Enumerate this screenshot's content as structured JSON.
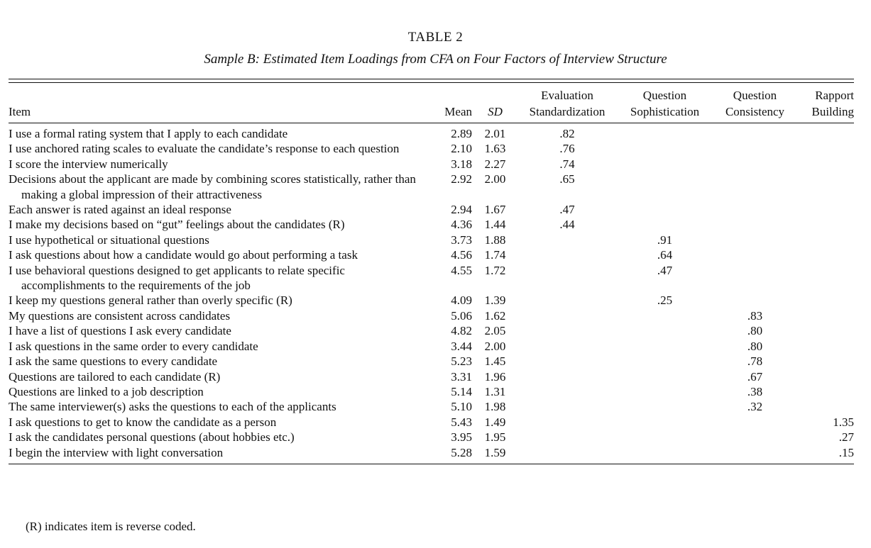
{
  "header": {
    "title": "TABLE 2",
    "subtitle": "Sample B: Estimated Item Loadings from CFA on Four Factors of Interview Structure"
  },
  "table": {
    "columns": {
      "item": "Item",
      "mean": "Mean",
      "sd": "SD"
    },
    "factors": [
      {
        "name": "Evaluation Standardization",
        "rows": [
          {
            "item": "I use a formal rating system that I apply to each candidate",
            "mean": "2.89",
            "sd": "2.01",
            "loading": ".82"
          },
          {
            "item": "I use anchored rating scales to evaluate the candidate’s response to each question",
            "mean": "2.10",
            "sd": "1.63",
            "loading": ".76"
          },
          {
            "item": "I score the interview numerically",
            "mean": "3.18",
            "sd": "2.27",
            "loading": ".74"
          },
          {
            "item": "Decisions about the applicant are made by combining scores statistically, rather than making a global impression of their attractiveness",
            "mean": "2.92",
            "sd": "2.00",
            "loading": ".65"
          },
          {
            "item": "Each answer is rated against an ideal response",
            "mean": "2.94",
            "sd": "1.67",
            "loading": ".47"
          },
          {
            "item": "I make my decisions based on “gut” feelings about the candidates (R)",
            "mean": "4.36",
            "sd": "1.44",
            "loading": ".44"
          }
        ]
      },
      {
        "name": "Question Sophistication",
        "rows": [
          {
            "item": "I use hypothetical or situational questions",
            "mean": "3.73",
            "sd": "1.88",
            "loading": ".91"
          },
          {
            "item": "I ask questions about how a candidate would go about performing a task",
            "mean": "4.56",
            "sd": "1.74",
            "loading": ".64"
          },
          {
            "item": "I use behavioral questions designed to get applicants to relate specific accomplishments to the requirements of the job",
            "mean": "4.55",
            "sd": "1.72",
            "loading": ".47"
          },
          {
            "item": "I keep my questions general rather than overly specific (R)",
            "mean": "4.09",
            "sd": "1.39",
            "loading": ".25"
          }
        ]
      },
      {
        "name": "Question Consistency",
        "rows": [
          {
            "item": "My questions are consistent across candidates",
            "mean": "5.06",
            "sd": "1.62",
            "loading": ".83"
          },
          {
            "item": "I have a list of questions I ask every candidate",
            "mean": "4.82",
            "sd": "2.05",
            "loading": ".80"
          },
          {
            "item": "I ask questions in the same order to every candidate",
            "mean": "3.44",
            "sd": "2.00",
            "loading": ".80"
          },
          {
            "item": "I ask the same questions to every candidate",
            "mean": "5.23",
            "sd": "1.45",
            "loading": ".78"
          },
          {
            "item": "Questions are tailored to each candidate (R)",
            "mean": "3.31",
            "sd": "1.96",
            "loading": ".67"
          },
          {
            "item": "Questions are linked to a job description",
            "mean": "5.14",
            "sd": "1.31",
            "loading": ".38"
          },
          {
            "item": "The same interviewer(s) asks the questions to each of the applicants",
            "mean": "5.10",
            "sd": "1.98",
            "loading": ".32"
          }
        ]
      },
      {
        "name": "Rapport Building",
        "rows": [
          {
            "item": "I ask questions to get to know the candidate as a person",
            "mean": "5.43",
            "sd": "1.49",
            "loading": "1.35"
          },
          {
            "item": "I ask the candidates personal questions (about hobbies etc.)",
            "mean": "3.95",
            "sd": "1.95",
            "loading": ".27"
          },
          {
            "item": "I begin the interview with light conversation",
            "mean": "5.28",
            "sd": "1.59",
            "loading": ".15"
          }
        ]
      }
    ]
  },
  "footnote": "(R) indicates item is reverse coded."
}
